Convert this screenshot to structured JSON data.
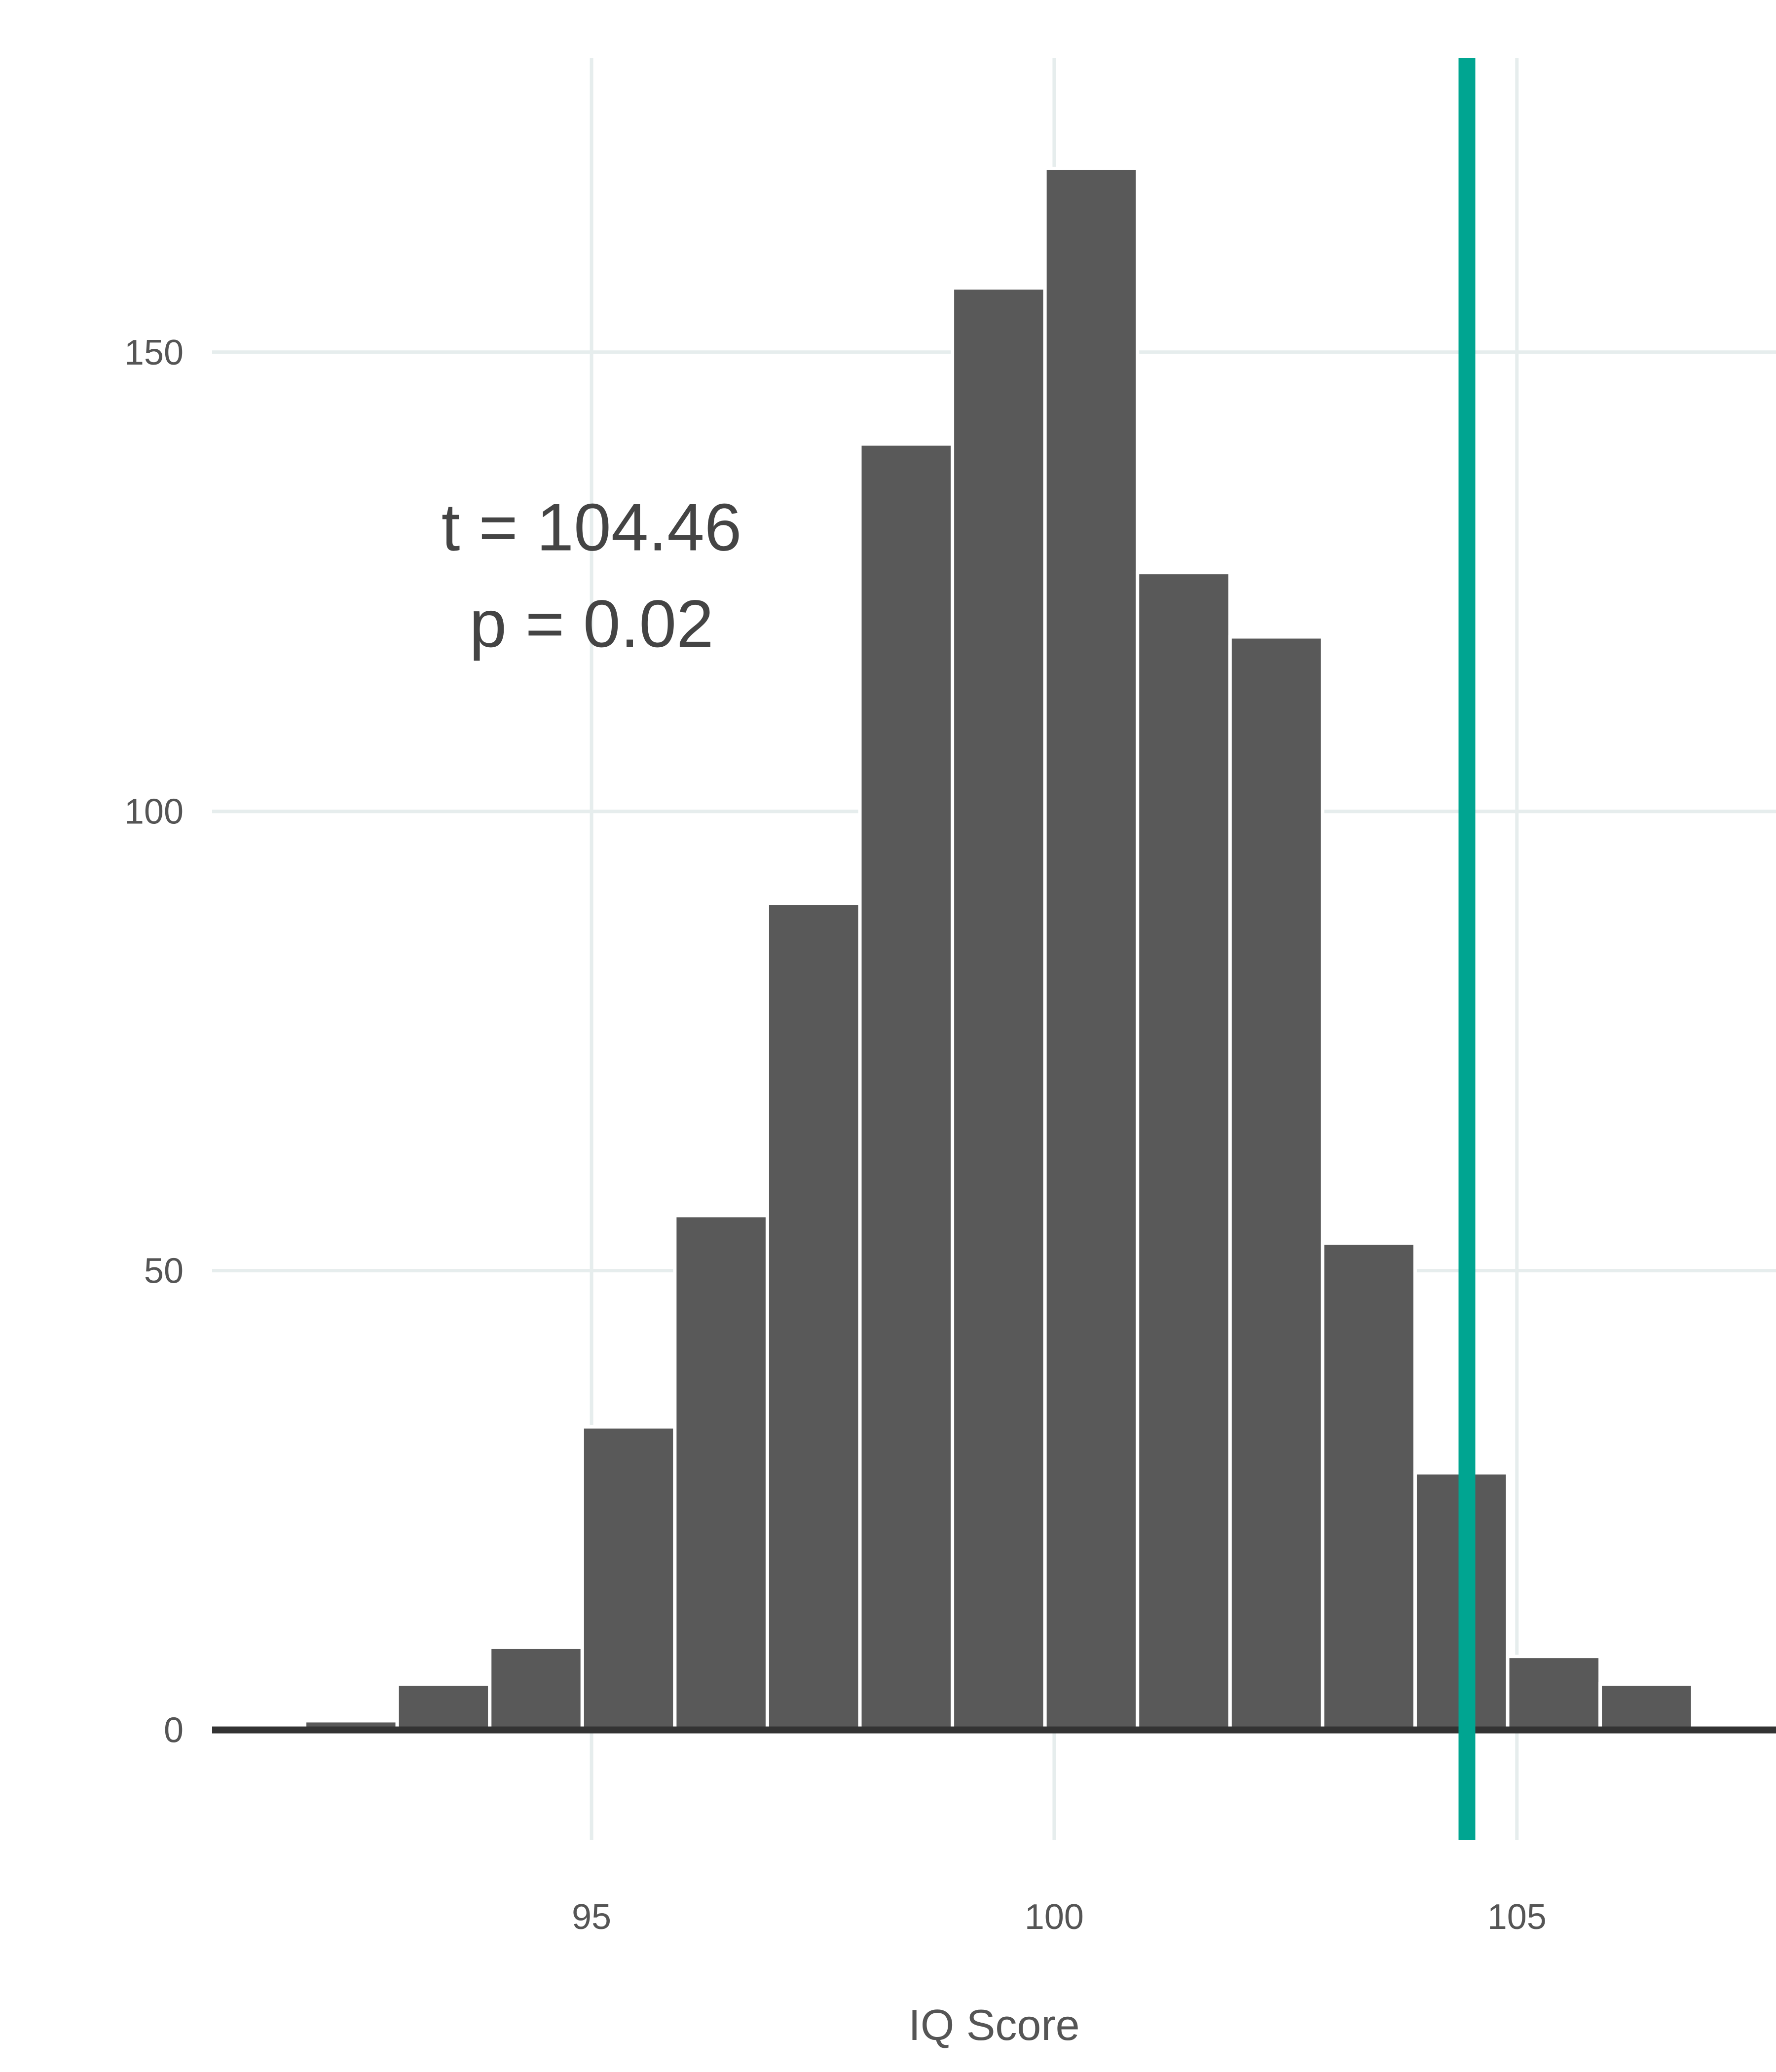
{
  "chart_data": {
    "type": "bar",
    "subtype": "histogram",
    "title": "",
    "xlabel": "IQ Score",
    "ylabel": "",
    "bins": [
      {
        "x0": 91.9,
        "x1": 92.9,
        "count": 1
      },
      {
        "x0": 92.9,
        "x1": 93.9,
        "count": 5
      },
      {
        "x0": 93.9,
        "x1": 94.9,
        "count": 9
      },
      {
        "x0": 94.9,
        "x1": 95.9,
        "count": 33
      },
      {
        "x0": 95.9,
        "x1": 96.9,
        "count": 56
      },
      {
        "x0": 96.9,
        "x1": 97.9,
        "count": 90
      },
      {
        "x0": 97.9,
        "x1": 98.9,
        "count": 140
      },
      {
        "x0": 98.9,
        "x1": 99.9,
        "count": 157
      },
      {
        "x0": 99.9,
        "x1": 100.9,
        "count": 170
      },
      {
        "x0": 100.9,
        "x1": 101.9,
        "count": 126
      },
      {
        "x0": 101.9,
        "x1": 102.9,
        "count": 119
      },
      {
        "x0": 102.9,
        "x1": 103.9,
        "count": 53
      },
      {
        "x0": 103.9,
        "x1": 104.9,
        "count": 28
      },
      {
        "x0": 104.9,
        "x1": 105.9,
        "count": 8
      },
      {
        "x0": 105.9,
        "x1": 106.9,
        "count": 5
      }
    ],
    "xlim": [
      90.9,
      107.8
    ],
    "ylim": [
      -12,
      182
    ],
    "x_ticks": [
      {
        "value": 95,
        "label": "95"
      },
      {
        "value": 100,
        "label": "100"
      },
      {
        "value": 105,
        "label": "105"
      }
    ],
    "y_ticks": [
      {
        "value": 0,
        "label": "0"
      },
      {
        "value": 50,
        "label": "50"
      },
      {
        "value": 100,
        "label": "100"
      },
      {
        "value": 150,
        "label": "150"
      }
    ],
    "reference_line": {
      "x": 104.46,
      "color": "#00a591"
    },
    "annotations": [
      {
        "text": "t = 104.46",
        "x": 95,
        "y": 131
      },
      {
        "text": "p = 0.02",
        "x": 95,
        "y": 120.5
      }
    ],
    "grid": true,
    "bar_color": "#595959",
    "grid_color": "#e6eded",
    "baseline_color": "#333333"
  }
}
